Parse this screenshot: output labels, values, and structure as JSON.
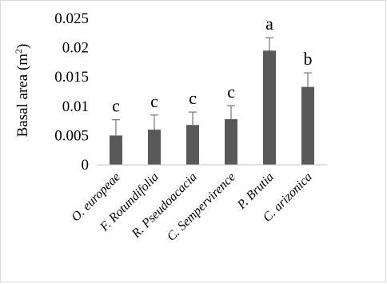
{
  "chart_data": {
    "type": "bar",
    "title": "",
    "xlabel": "",
    "ylabel": "Basal area (m",
    "ylabel_sup": "2",
    "ylabel_close": ")",
    "ylim": [
      0,
      0.025
    ],
    "yticks": [
      "0",
      "0.005",
      "0.01",
      "0.015",
      "0.02",
      "0.025"
    ],
    "categories": [
      "O. europeae",
      "F. Rotundifolia",
      "R. Pseudoacacia",
      "C. Sempervirence",
      "P. Brutia",
      "C. arizonica"
    ],
    "values": [
      0.005,
      0.006,
      0.0068,
      0.0078,
      0.0195,
      0.0133
    ],
    "error_upper": [
      0.0077,
      0.0085,
      0.009,
      0.0101,
      0.0217,
      0.0157
    ],
    "letters": [
      "c",
      "c",
      "c",
      "c",
      "a",
      "b"
    ],
    "grid": false,
    "legend": "none",
    "bar_color": "#595959",
    "error_color": "#7f7f7f"
  }
}
